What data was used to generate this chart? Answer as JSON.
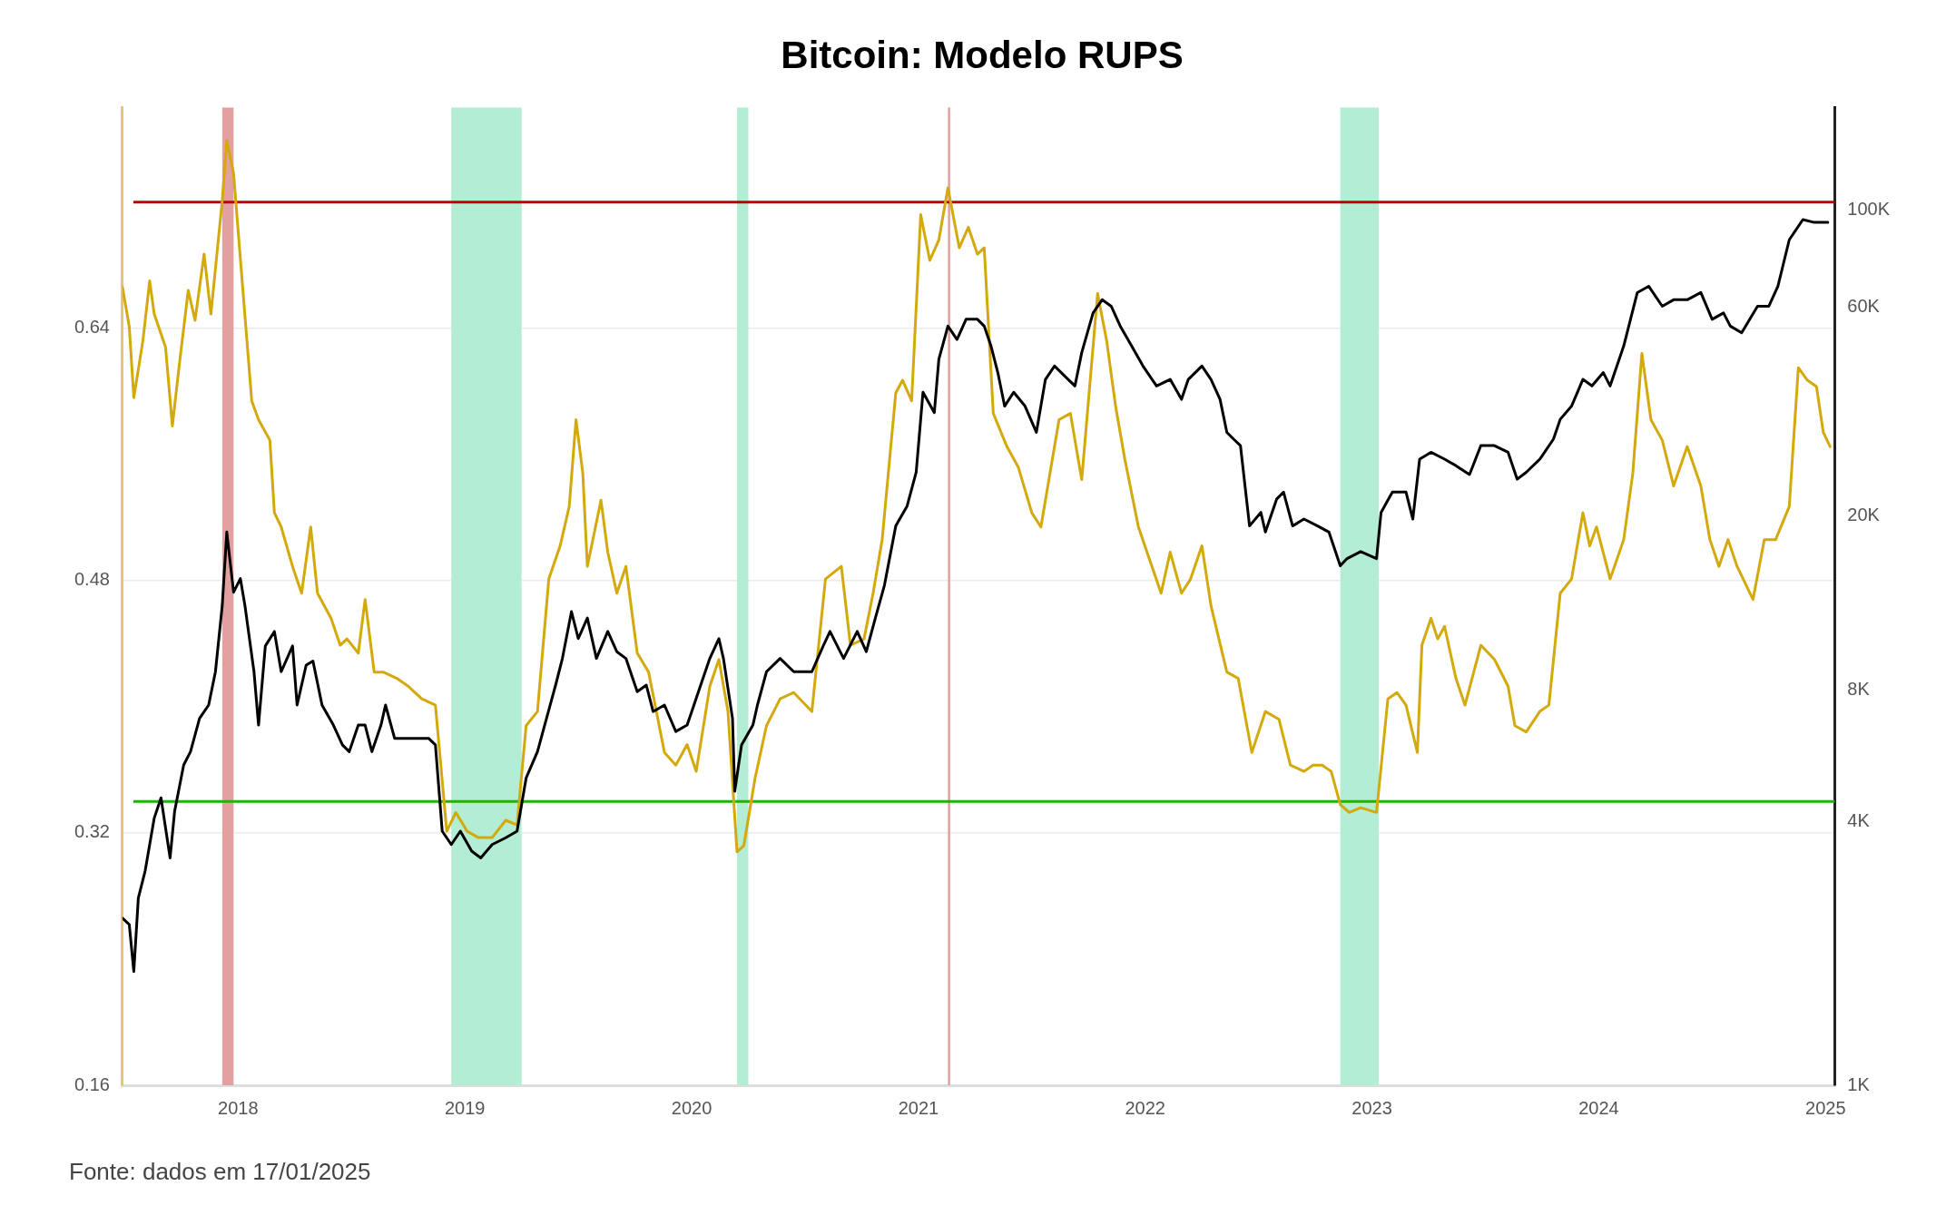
{
  "chart_data": {
    "type": "line",
    "title": "Bitcoin: Modelo RUPS",
    "xlim": [
      2017.49,
      2025.04
    ],
    "xticks": [
      2018,
      2019,
      2020,
      2021,
      2022,
      2023,
      2024,
      2025
    ],
    "ylim": [
      0.16,
      0.78
    ],
    "yticks": [
      0.16,
      0.32,
      0.48,
      0.64
    ],
    "y2lim": [
      1000,
      172000
    ],
    "y2ticks": [
      {
        "value": 1000,
        "label": "1K"
      },
      {
        "value": 4000,
        "label": "4K"
      },
      {
        "value": 8000,
        "label": "8K"
      },
      {
        "value": 20000,
        "label": "20K"
      },
      {
        "value": 60000,
        "label": "60K"
      },
      {
        "value": 100000,
        "label": "100K"
      }
    ],
    "log": "y2",
    "grid": "y",
    "legend": false,
    "series": [
      {
        "color": "#d4a90c",
        "x": [
          2017.49,
          2017.52,
          2017.54,
          2017.58,
          2017.61,
          2017.63,
          2017.68,
          2017.71,
          2017.74,
          2017.78,
          2017.81,
          2017.85,
          2017.88,
          2017.93,
          2017.95,
          2017.98,
          2018.02,
          2018.06,
          2018.09,
          2018.14,
          2018.16,
          2018.19,
          2018.24,
          2018.28,
          2018.32,
          2018.35,
          2018.41,
          2018.45,
          2018.48,
          2018.53,
          2018.56,
          2018.6,
          2018.64,
          2018.7,
          2018.75,
          2018.81,
          2018.87,
          2018.92,
          2018.96,
          2019.01,
          2019.06,
          2019.12,
          2019.18,
          2019.23,
          2019.27,
          2019.32,
          2019.37,
          2019.42,
          2019.46,
          2019.49,
          2019.52,
          2019.54,
          2019.6,
          2019.63,
          2019.67,
          2019.71,
          2019.76,
          2019.81,
          2019.88,
          2019.93,
          2019.98,
          2020.02,
          2020.08,
          2020.12,
          2020.16,
          2020.2,
          2020.23,
          2020.28,
          2020.33,
          2020.39,
          2020.45,
          2020.53,
          2020.59,
          2020.66,
          2020.7,
          2020.76,
          2020.8,
          2020.84,
          2020.9,
          2020.93,
          2020.97,
          2021.01,
          2021.05,
          2021.09,
          2021.13,
          2021.18,
          2021.22,
          2021.26,
          2021.29,
          2021.33,
          2021.39,
          2021.44,
          2021.5,
          2021.54,
          2021.62,
          2021.67,
          2021.72,
          2021.79,
          2021.83,
          2021.87,
          2021.91,
          2021.97,
          2022.02,
          2022.07,
          2022.11,
          2022.16,
          2022.2,
          2022.25,
          2022.29,
          2022.36,
          2022.41,
          2022.47,
          2022.53,
          2022.59,
          2022.64,
          2022.7,
          2022.74,
          2022.78,
          2022.82,
          2022.86,
          2022.9,
          2022.95,
          2023.02,
          2023.07,
          2023.11,
          2023.15,
          2023.2,
          2023.22,
          2023.26,
          2023.29,
          2023.32,
          2023.37,
          2023.41,
          2023.48,
          2023.54,
          2023.6,
          2023.63,
          2023.68,
          2023.74,
          2023.78,
          2023.83,
          2023.88,
          2023.93,
          2023.96,
          2023.99,
          2024.05,
          2024.11,
          2024.15,
          2024.19,
          2024.23,
          2024.28,
          2024.33,
          2024.39,
          2024.45,
          2024.49,
          2024.53,
          2024.57,
          2024.61,
          2024.68,
          2024.73,
          2024.78,
          2024.84,
          2024.88,
          2024.92,
          2024.96,
          2024.99,
          2025.02
        ],
        "values": [
          0.666,
          0.641,
          0.596,
          0.632,
          0.67,
          0.649,
          0.628,
          0.578,
          0.616,
          0.664,
          0.645,
          0.687,
          0.649,
          0.721,
          0.759,
          0.738,
          0.666,
          0.594,
          0.582,
          0.569,
          0.523,
          0.514,
          0.489,
          0.472,
          0.514,
          0.472,
          0.456,
          0.439,
          0.443,
          0.434,
          0.468,
          0.422,
          0.422,
          0.418,
          0.413,
          0.405,
          0.401,
          0.321,
          0.333,
          0.321,
          0.317,
          0.317,
          0.328,
          0.325,
          0.388,
          0.397,
          0.481,
          0.502,
          0.527,
          0.582,
          0.548,
          0.489,
          0.531,
          0.498,
          0.472,
          0.489,
          0.434,
          0.422,
          0.371,
          0.363,
          0.376,
          0.359,
          0.413,
          0.43,
          0.397,
          0.308,
          0.312,
          0.355,
          0.388,
          0.405,
          0.409,
          0.397,
          0.481,
          0.489,
          0.439,
          0.443,
          0.472,
          0.506,
          0.599,
          0.607,
          0.594,
          0.712,
          0.683,
          0.696,
          0.729,
          0.691,
          0.704,
          0.687,
          0.691,
          0.586,
          0.565,
          0.552,
          0.523,
          0.514,
          0.582,
          0.586,
          0.544,
          0.662,
          0.632,
          0.59,
          0.557,
          0.514,
          0.493,
          0.472,
          0.498,
          0.472,
          0.481,
          0.502,
          0.464,
          0.422,
          0.418,
          0.371,
          0.397,
          0.392,
          0.363,
          0.359,
          0.363,
          0.363,
          0.359,
          0.338,
          0.333,
          0.336,
          0.333,
          0.405,
          0.409,
          0.401,
          0.371,
          0.439,
          0.456,
          0.443,
          0.451,
          0.418,
          0.401,
          0.439,
          0.43,
          0.413,
          0.388,
          0.384,
          0.397,
          0.401,
          0.472,
          0.481,
          0.523,
          0.502,
          0.514,
          0.481,
          0.506,
          0.548,
          0.624,
          0.582,
          0.569,
          0.54,
          0.565,
          0.54,
          0.506,
          0.489,
          0.506,
          0.489,
          0.468,
          0.506,
          0.506,
          0.527,
          0.615,
          0.607,
          0.603,
          0.574,
          0.565
        ]
      },
      {
        "color": "#000000",
        "axis": "y2",
        "x": [
          2017.49,
          2017.52,
          2017.54,
          2017.56,
          2017.59,
          2017.63,
          2017.66,
          2017.7,
          2017.72,
          2017.76,
          2017.79,
          2017.83,
          2017.87,
          2017.9,
          2017.93,
          2017.95,
          2017.98,
          2018.01,
          2018.03,
          2018.07,
          2018.09,
          2018.12,
          2018.16,
          2018.19,
          2018.24,
          2018.26,
          2018.3,
          2018.33,
          2018.37,
          2018.42,
          2018.46,
          2018.49,
          2018.53,
          2018.56,
          2018.59,
          2018.63,
          2018.65,
          2018.69,
          2018.73,
          2018.75,
          2018.84,
          2018.87,
          2018.9,
          2018.94,
          2018.98,
          2019.03,
          2019.07,
          2019.12,
          2019.18,
          2019.23,
          2019.27,
          2019.32,
          2019.36,
          2019.4,
          2019.43,
          2019.47,
          2019.5,
          2019.54,
          2019.58,
          2019.63,
          2019.67,
          2019.71,
          2019.76,
          2019.8,
          2019.83,
          2019.88,
          2019.93,
          2019.98,
          2020.03,
          2020.08,
          2020.12,
          2020.14,
          2020.18,
          2020.19,
          2020.22,
          2020.27,
          2020.29,
          2020.33,
          2020.39,
          2020.45,
          2020.53,
          2020.58,
          2020.61,
          2020.67,
          2020.73,
          2020.77,
          2020.81,
          2020.85,
          2020.9,
          2020.95,
          2020.99,
          2021.02,
          2021.07,
          2021.09,
          2021.13,
          2021.17,
          2021.21,
          2021.26,
          2021.29,
          2021.32,
          2021.35,
          2021.38,
          2021.42,
          2021.47,
          2021.52,
          2021.56,
          2021.6,
          2021.66,
          2021.69,
          2021.72,
          2021.77,
          2021.81,
          2021.85,
          2021.89,
          2021.94,
          2021.99,
          2022.05,
          2022.11,
          2022.16,
          2022.19,
          2022.25,
          2022.29,
          2022.33,
          2022.36,
          2022.39,
          2022.42,
          2022.46,
          2022.51,
          2022.53,
          2022.58,
          2022.61,
          2022.65,
          2022.7,
          2022.76,
          2022.81,
          2022.86,
          2022.89,
          2022.95,
          2023.02,
          2023.04,
          2023.09,
          2023.15,
          2023.18,
          2023.21,
          2023.26,
          2023.32,
          2023.37,
          2023.43,
          2023.48,
          2023.54,
          2023.6,
          2023.64,
          2023.68,
          2023.74,
          2023.8,
          2023.83,
          2023.88,
          2023.93,
          2023.97,
          2024.02,
          2024.05,
          2024.11,
          2024.17,
          2024.22,
          2024.28,
          2024.33,
          2024.39,
          2024.45,
          2024.5,
          2024.55,
          2024.58,
          2024.63,
          2024.7,
          2024.75,
          2024.79,
          2024.84,
          2024.9,
          2024.95,
          2025.01
        ],
        "values": [
          2410,
          2330,
          1820,
          2680,
          3090,
          4080,
          4540,
          3310,
          4230,
          5400,
          5790,
          6900,
          7400,
          8820,
          12500,
          18400,
          13400,
          14400,
          12500,
          8820,
          6660,
          10100,
          10900,
          8820,
          10100,
          7400,
          9130,
          9330,
          7400,
          6660,
          6000,
          5790,
          6660,
          6660,
          5790,
          6660,
          7400,
          6210,
          6210,
          6210,
          6210,
          6000,
          3810,
          3550,
          3810,
          3430,
          3310,
          3550,
          3680,
          3810,
          5040,
          5790,
          6900,
          8220,
          9460,
          12100,
          10500,
          11700,
          9460,
          10900,
          9800,
          9460,
          7940,
          8220,
          7150,
          7400,
          6440,
          6660,
          7940,
          9460,
          10500,
          9460,
          6900,
          4700,
          6000,
          6660,
          7400,
          8820,
          9460,
          8820,
          8820,
          10100,
          10900,
          9460,
          10900,
          9800,
          11700,
          13900,
          19000,
          21100,
          25200,
          38400,
          34500,
          45700,
          54400,
          50700,
          56400,
          56400,
          54400,
          49000,
          42600,
          35700,
          38400,
          35700,
          31100,
          41100,
          44100,
          41100,
          39700,
          47300,
          58300,
          62500,
          60400,
          54400,
          49000,
          44100,
          39700,
          41100,
          37000,
          41100,
          44100,
          41100,
          37000,
          31100,
          30000,
          29000,
          19000,
          20400,
          18400,
          21900,
          22700,
          19000,
          19700,
          19000,
          18400,
          15400,
          16000,
          16600,
          16000,
          20400,
          22700,
          22700,
          19700,
          27000,
          28000,
          27000,
          26100,
          24900,
          29000,
          29000,
          28000,
          24300,
          25200,
          27000,
          30000,
          33300,
          35700,
          41100,
          39700,
          42600,
          39700,
          49000,
          64900,
          67100,
          60400,
          62500,
          62500,
          64900,
          56400,
          58300,
          54400,
          52500,
          60400,
          60400,
          67100,
          85700,
          95300,
          93900,
          93900
        ]
      }
    ],
    "ref_lines": [
      {
        "axis": "y",
        "value": 0.72,
        "color": "#c00000"
      },
      {
        "axis": "y",
        "value": 0.34,
        "color": "#22b00e"
      }
    ],
    "bands": [
      {
        "axis": "x",
        "from": 2017.93,
        "to": 2017.98,
        "color": "#e3a0a0"
      },
      {
        "axis": "x",
        "from": 2018.94,
        "to": 2019.25,
        "color": "#b3edd3"
      },
      {
        "axis": "x",
        "from": 2020.2,
        "to": 2020.25,
        "color": "#b3edd3"
      },
      {
        "axis": "x",
        "from": 2021.13,
        "to": 2021.14,
        "color": "#e3a0a0"
      },
      {
        "axis": "x",
        "from": 2022.86,
        "to": 2023.03,
        "color": "#b3edd3"
      }
    ],
    "annotations": [
      "Fonte: dados em 17/01/2025"
    ]
  }
}
